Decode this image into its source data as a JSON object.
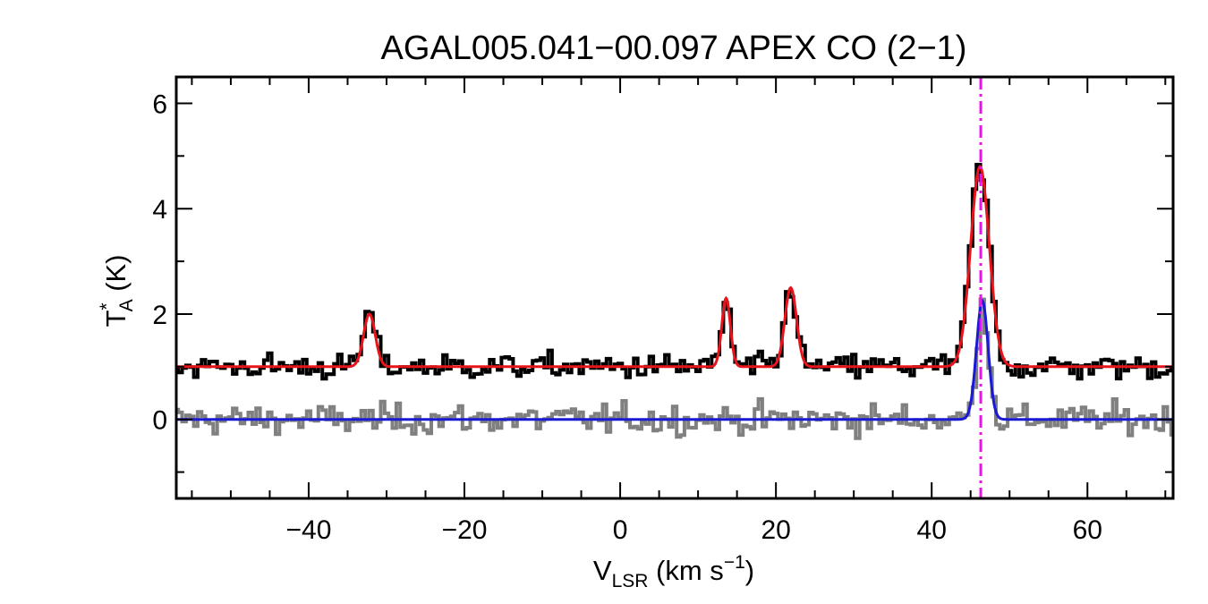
{
  "chart_data": {
    "type": "line",
    "title": "AGAL005.041−00.097  APEX CO (2−1)",
    "xlabel": {
      "main": "V",
      "sub": "LSR",
      "rest": " (km s",
      "sup": "−1",
      "close": ")"
    },
    "ylabel": {
      "main": "T",
      "sup": "*",
      "sub": "A",
      "rest": " (K)"
    },
    "xlim": [
      -57,
      71
    ],
    "ylim": [
      -1.5,
      6.5
    ],
    "xticks": [
      -40,
      -20,
      0,
      20,
      40,
      60
    ],
    "xtick_labels": [
      "−40",
      "−20",
      "0",
      "20",
      "40",
      "60"
    ],
    "yticks": [
      0,
      2,
      4,
      6
    ],
    "ytick_labels": [
      "0",
      "2",
      "4",
      "6"
    ],
    "grid": false,
    "reference_velocity": 46.3,
    "series": [
      {
        "role": "observed spectrum (offset +1 K)",
        "style": "step",
        "color": "#000000",
        "baseline": 1.0,
        "noise_rms": 0.12,
        "components": [
          {
            "center": -32.2,
            "amplitude": 1.05,
            "sigma": 0.75
          },
          {
            "center": 13.6,
            "amplitude": 1.3,
            "sigma": 0.55
          },
          {
            "center": 21.9,
            "amplitude": 1.55,
            "sigma": 0.75
          },
          {
            "center": 46.2,
            "amplitude": 3.8,
            "sigma": 1.2
          }
        ]
      },
      {
        "role": "fit to observed spectrum",
        "style": "line",
        "color": "#e8141c",
        "baseline": 1.0,
        "components": [
          {
            "center": -32.2,
            "amplitude": 1.0,
            "sigma": 0.75
          },
          {
            "center": 13.6,
            "amplitude": 1.3,
            "sigma": 0.55
          },
          {
            "center": 21.9,
            "amplitude": 1.5,
            "sigma": 0.75
          },
          {
            "center": 46.2,
            "amplitude": 3.8,
            "sigma": 1.2
          }
        ]
      },
      {
        "role": "residual / second spectrum",
        "style": "step",
        "color": "#808080",
        "baseline": 0.0,
        "noise_rms": 0.14,
        "components": [
          {
            "center": 46.6,
            "amplitude": 2.2,
            "sigma": 0.75
          }
        ]
      },
      {
        "role": "fit to second spectrum",
        "style": "line",
        "color": "#1a1ad6",
        "baseline": 0.0,
        "components": [
          {
            "center": 46.5,
            "amplitude": 2.25,
            "sigma": 0.75
          }
        ]
      }
    ],
    "marker_color": "#ee11ee"
  }
}
